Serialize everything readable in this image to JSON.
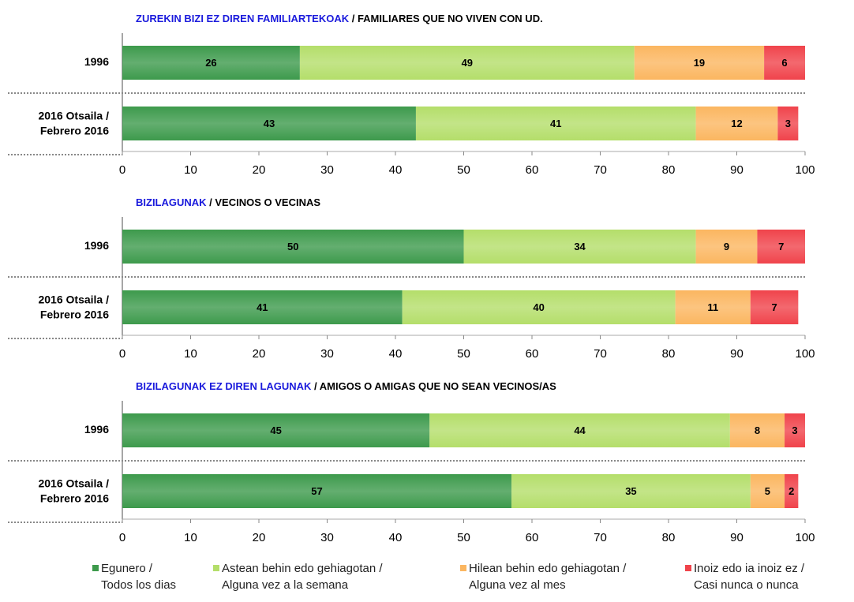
{
  "chart_data": {
    "type": "bar",
    "orientation": "horizontal",
    "stacked": true,
    "categories": [
      "1996",
      [
        "2016 Otsaila /",
        "Febrero 2016"
      ]
    ],
    "xlim": [
      0,
      100
    ],
    "xticks": [
      0,
      10,
      20,
      30,
      40,
      50,
      60,
      70,
      80,
      90,
      100
    ],
    "series": [
      {
        "name": [
          "Egunero /",
          "Todos los dias"
        ],
        "color": "#3d9a4c"
      },
      {
        "name": [
          "Astean behin edo gehiagotan /",
          "Alguna vez a la semana"
        ],
        "color": "#b4de6a"
      },
      {
        "name": [
          "Hilean behin edo gehiagotan /",
          "Alguna vez al mes"
        ],
        "color": "#fbb660"
      },
      {
        "name": [
          "Inoiz edo ia inoiz ez /",
          "Casi nunca o nunca"
        ],
        "color": "#f0434b"
      }
    ],
    "panels": [
      {
        "title_eu": "ZUREKIN BIZI EZ DIREN FAMILIARTEKOAK",
        "title_es": " / FAMILIARES QUE NO VIVEN CON UD.",
        "values": [
          [
            26,
            49,
            19,
            6
          ],
          [
            43,
            41,
            12,
            3
          ]
        ]
      },
      {
        "title_eu": "BIZILAGUNAK",
        "title_es": " / VECINOS O VECINAS",
        "values": [
          [
            50,
            34,
            9,
            7
          ],
          [
            41,
            40,
            11,
            7
          ]
        ]
      },
      {
        "title_eu": "BIZILAGUNAK EZ DIREN LAGUNAK",
        "title_es": " / AMIGOS O AMIGAS QUE NO SEAN VECINOS/AS",
        "values": [
          [
            45,
            44,
            8,
            3
          ],
          [
            57,
            35,
            5,
            2
          ]
        ]
      }
    ]
  }
}
